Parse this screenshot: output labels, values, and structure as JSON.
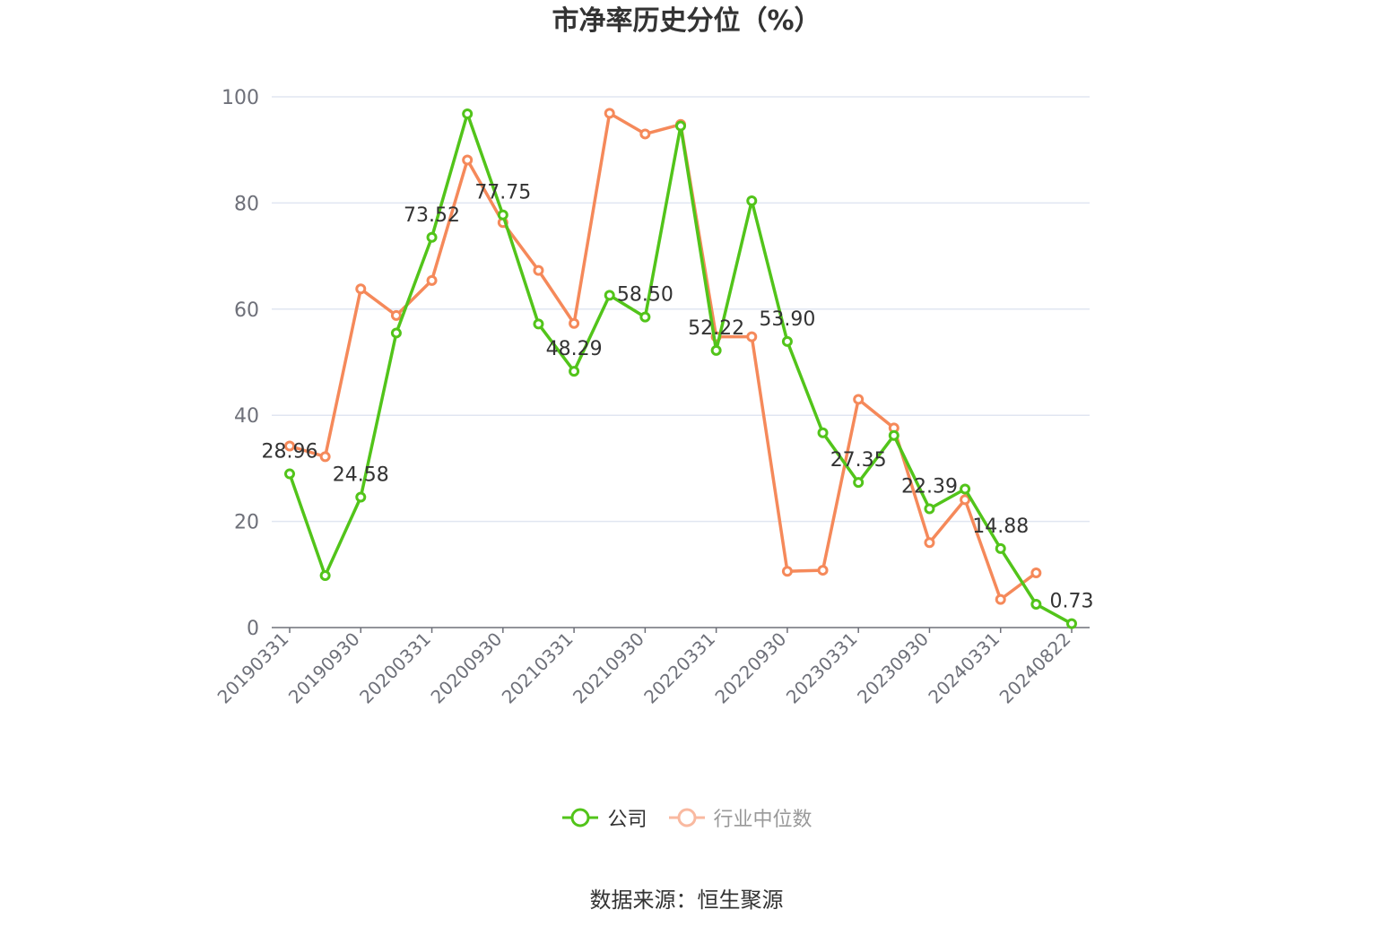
{
  "title": "市净率历史分位（%）",
  "source": "数据来源：恒生聚源",
  "chart_data": {
    "type": "line",
    "title": "市净率历史分位（%）",
    "x_ticks": [
      "20190331",
      "20190930",
      "20200331",
      "20200930",
      "20210331",
      "20210930",
      "20220331",
      "20220930",
      "20230331",
      "20230930",
      "20240331",
      "20240822"
    ],
    "ylim": [
      0,
      100
    ],
    "y_ticks": [
      0,
      20,
      40,
      60,
      80,
      100
    ],
    "grid": true,
    "legend_position": "bottom",
    "series": [
      {
        "name": "公司",
        "color": "#52c41a",
        "values": [
          28.96,
          9.8,
          24.58,
          55.5,
          73.52,
          96.8,
          77.75,
          57.2,
          48.29,
          62.6,
          58.5,
          94.5,
          52.22,
          80.4,
          53.9,
          36.7,
          27.35,
          36.2,
          22.39,
          26.1,
          14.88,
          4.4,
          0.73
        ],
        "labels": [
          "28.96",
          null,
          "24.58",
          null,
          "73.52",
          null,
          "77.75",
          null,
          "48.29",
          null,
          "58.50",
          null,
          "52.22",
          null,
          "53.90",
          null,
          "27.35",
          null,
          "22.39",
          null,
          "14.88",
          null,
          "0.73"
        ]
      },
      {
        "name": "行业中位数",
        "color": "#f5895a",
        "values": [
          34.2,
          32.2,
          63.8,
          58.8,
          65.4,
          88.1,
          76.3,
          67.3,
          57.3,
          96.9,
          93.0,
          94.8,
          54.8,
          54.8,
          10.6,
          10.8,
          43.0,
          37.6,
          16.0,
          24.1,
          5.3,
          10.3,
          null
        ]
      }
    ]
  },
  "legend": [
    {
      "label": "公司",
      "color": "#52c41a",
      "active": true
    },
    {
      "label": "行业中位数",
      "color": "#f5895a",
      "active": false,
      "faded_color": "#f9b9a0"
    }
  ]
}
